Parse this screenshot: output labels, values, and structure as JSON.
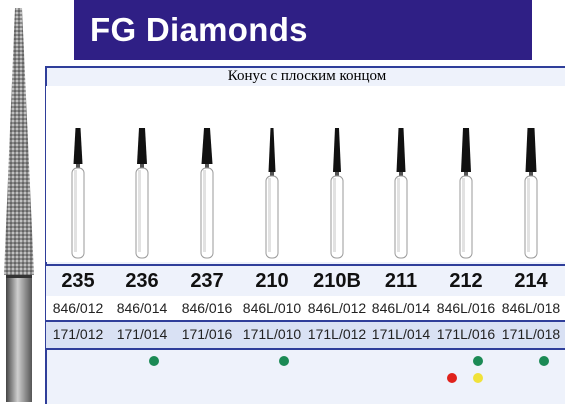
{
  "header": {
    "title": "FG Diamonds"
  },
  "subtitle": "Конус с плоским концом",
  "items": [
    {
      "number": "235",
      "code_a": "846/012",
      "code_b": "171/012"
    },
    {
      "number": "236",
      "code_a": "846/014",
      "code_b": "171/014"
    },
    {
      "number": "237",
      "code_a": "846/016",
      "code_b": "171/016"
    },
    {
      "number": "210",
      "code_a": "846L/010",
      "code_b": "171L/010"
    },
    {
      "number": "210B",
      "code_a": "846L/012",
      "code_b": "171L/012"
    },
    {
      "number": "211",
      "code_a": "846L/014",
      "code_b": "171L/014"
    },
    {
      "number": "212",
      "code_a": "846L/016",
      "code_b": "171L/016"
    },
    {
      "number": "214",
      "code_a": "846L/018",
      "code_b": "171L/018"
    }
  ],
  "colors": {
    "banner": "#2f1f85",
    "green_band": "#1b8a55",
    "red_band": "#e0221c",
    "yellow_band": "#f0e23a"
  }
}
